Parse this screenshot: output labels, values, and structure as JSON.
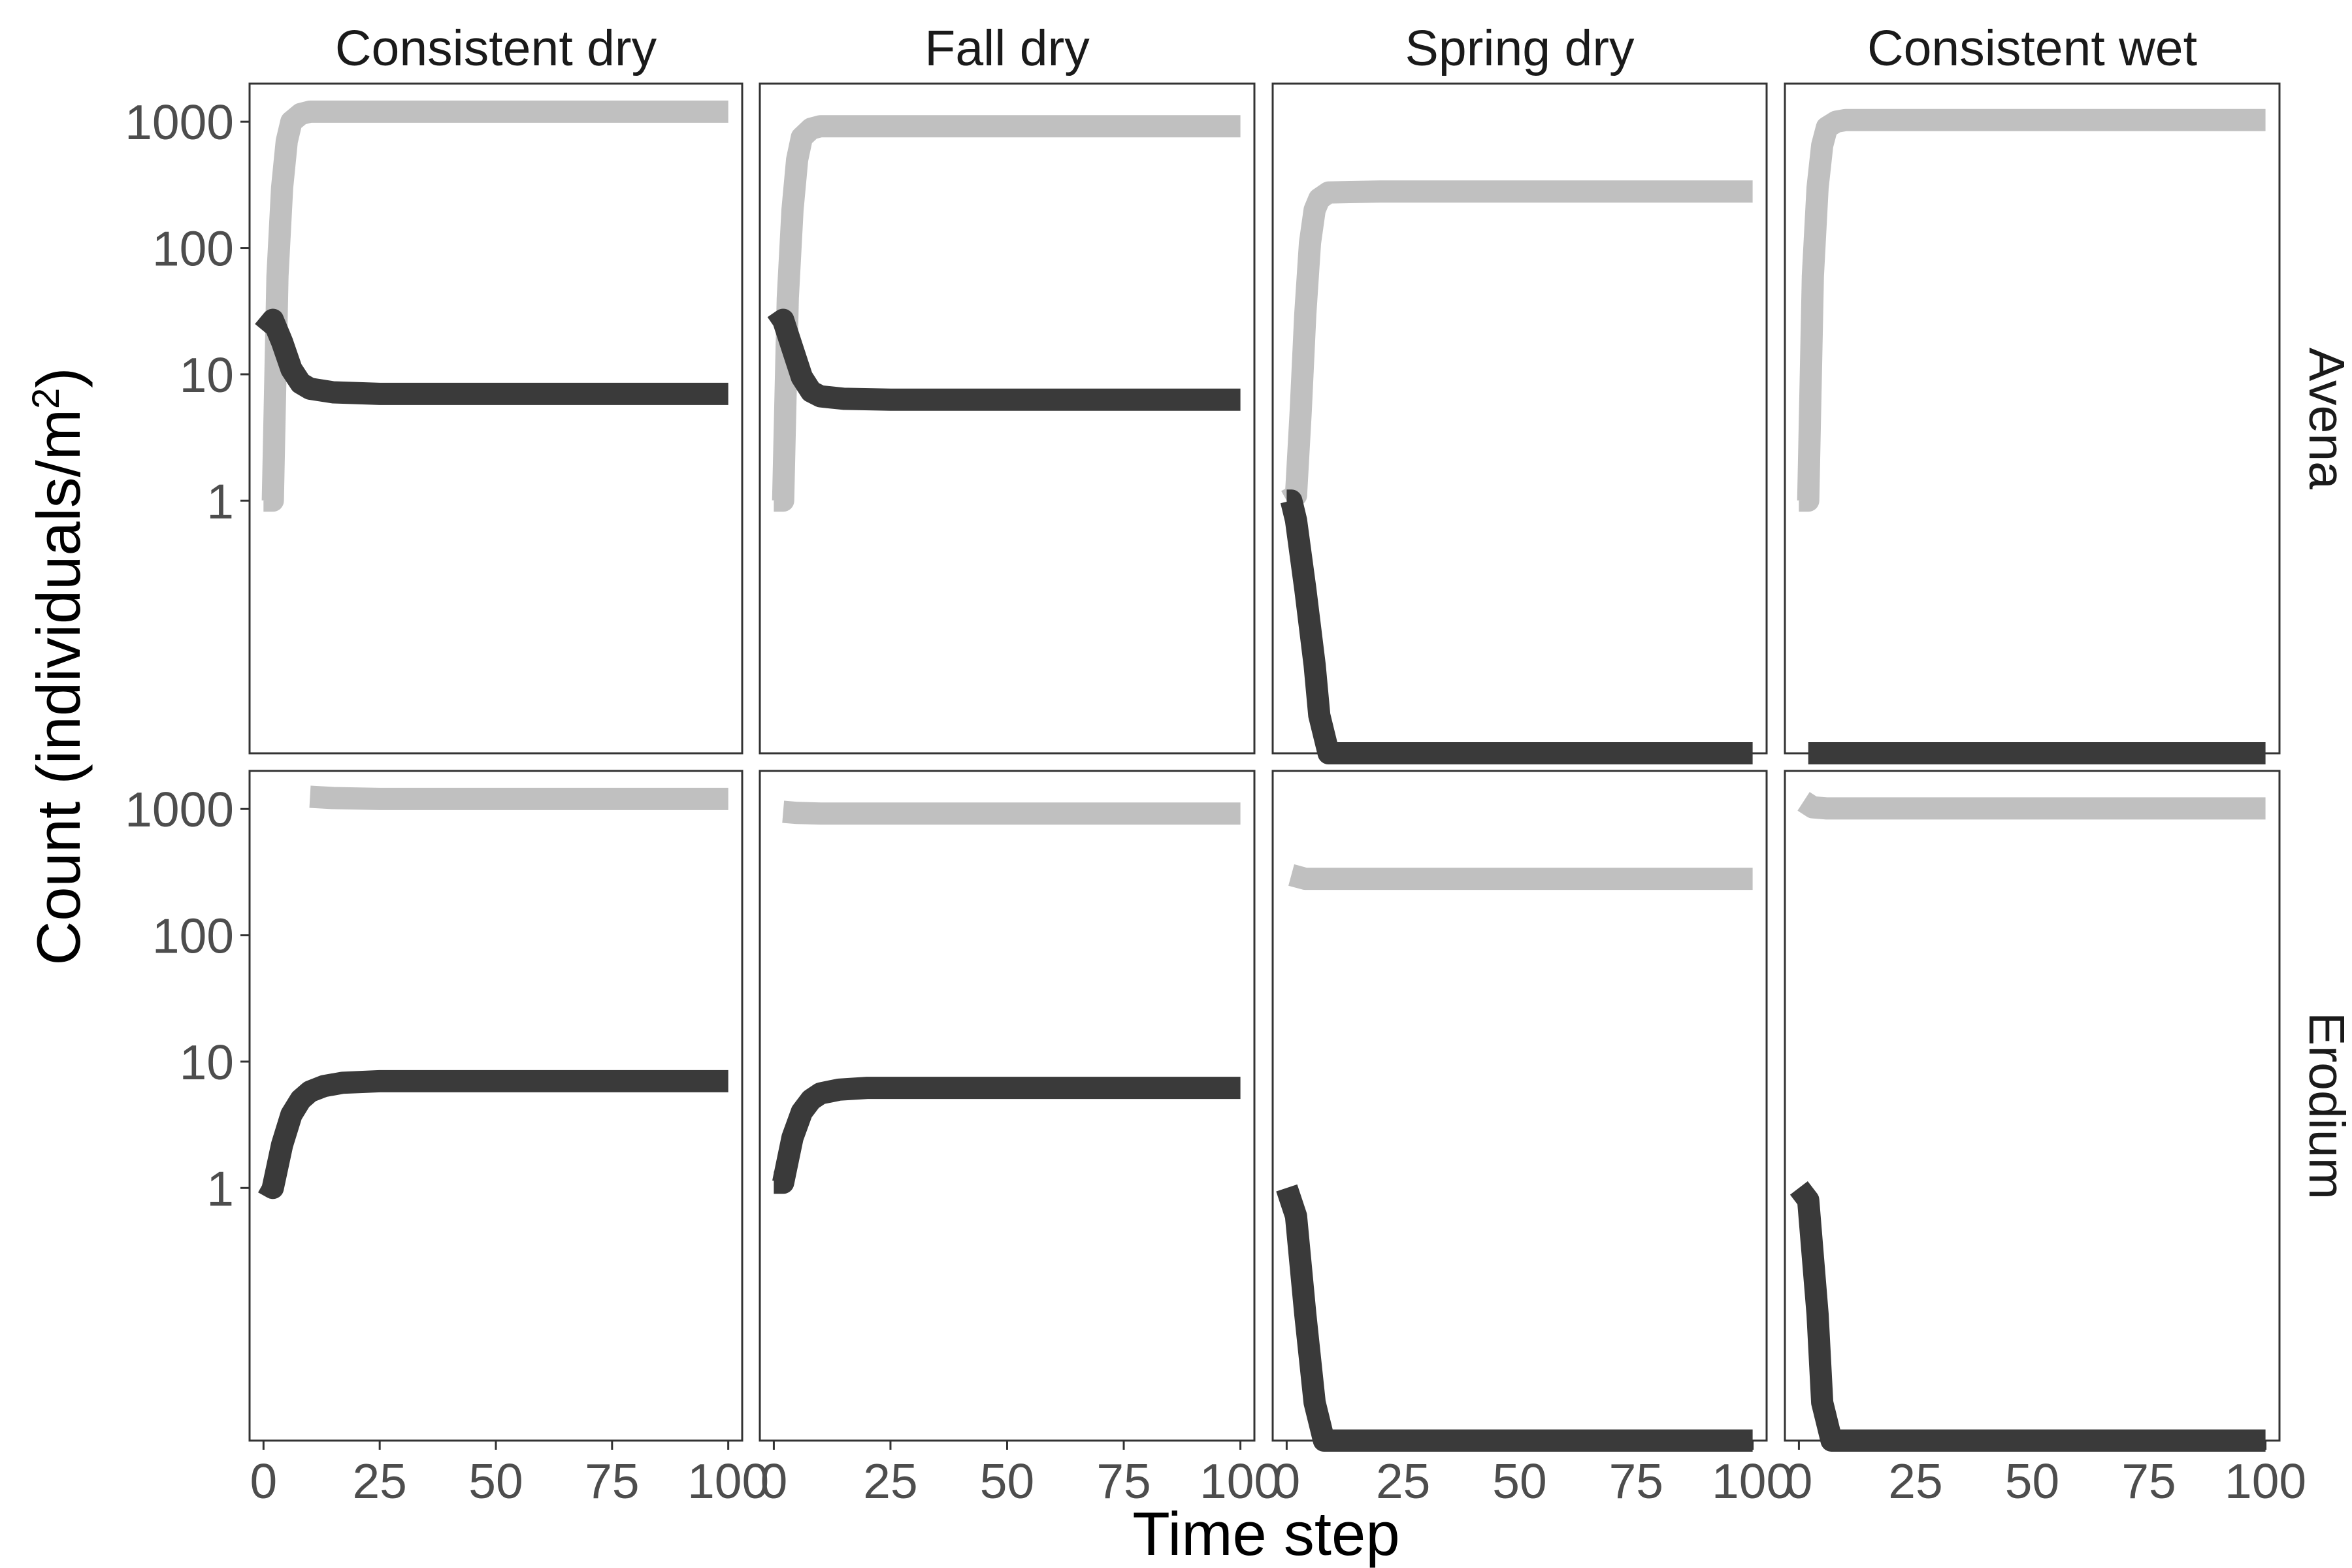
{
  "chart_data": {
    "type": "line",
    "xlabel": "Time step",
    "ylabel_prefix": "Count (individuals/m",
    "ylabel_sup": "2",
    "ylabel_suffix": ")",
    "y_scale": "log10",
    "ylim": [
      0.01,
      2000
    ],
    "xlim": [
      -3,
      103
    ],
    "x_ticks": [
      0,
      25,
      50,
      75,
      100
    ],
    "x_tick_labels": [
      "0",
      "25",
      "50",
      "75",
      "100"
    ],
    "y_ticks": [
      1,
      10,
      100,
      1000
    ],
    "y_tick_labels": [
      "1",
      "10",
      "100",
      "1000"
    ],
    "columns": [
      "Consistent dry",
      "Fall dry",
      "Spring dry",
      "Consistent wet"
    ],
    "rows": [
      "Avena",
      "Erodium"
    ],
    "colors": {
      "light": "#c0c0c0",
      "dark": "#3a3a3a"
    },
    "panels": [
      {
        "row": "Avena",
        "column": "Consistent dry",
        "series": [
          {
            "color": "light",
            "points": [
              [
                0,
                1
              ],
              [
                2,
                1
              ],
              [
                3,
                60
              ],
              [
                4,
                300
              ],
              [
                5,
                700
              ],
              [
                6,
                1000
              ],
              [
                8,
                1150
              ],
              [
                10,
                1200
              ],
              [
                20,
                1200
              ],
              [
                100,
                1200
              ]
            ]
          },
          {
            "color": "dark",
            "points": [
              [
                0,
                22
              ],
              [
                2,
                27
              ],
              [
                4,
                18
              ],
              [
                6,
                11
              ],
              [
                8,
                8.5
              ],
              [
                10,
                7.7
              ],
              [
                15,
                7.2
              ],
              [
                25,
                7
              ],
              [
                100,
                7
              ]
            ]
          }
        ]
      },
      {
        "row": "Avena",
        "column": "Fall dry",
        "series": [
          {
            "color": "light",
            "points": [
              [
                0,
                1
              ],
              [
                2,
                1
              ],
              [
                3,
                40
              ],
              [
                4,
                200
              ],
              [
                5,
                500
              ],
              [
                6,
                750
              ],
              [
                8,
                880
              ],
              [
                10,
                920
              ],
              [
                20,
                920
              ],
              [
                100,
                920
              ]
            ]
          },
          {
            "color": "dark",
            "points": [
              [
                0,
                24
              ],
              [
                2,
                27
              ],
              [
                4,
                16
              ],
              [
                6,
                9.5
              ],
              [
                8,
                7.3
              ],
              [
                10,
                6.7
              ],
              [
                15,
                6.4
              ],
              [
                25,
                6.3
              ],
              [
                100,
                6.3
              ]
            ]
          }
        ]
      },
      {
        "row": "Avena",
        "column": "Spring dry",
        "series": [
          {
            "color": "light",
            "points": [
              [
                0,
                1
              ],
              [
                2,
                1.1
              ],
              [
                3,
                5
              ],
              [
                4,
                30
              ],
              [
                5,
                110
              ],
              [
                6,
                200
              ],
              [
                7,
                245
              ],
              [
                9,
                275
              ],
              [
                20,
                280
              ],
              [
                100,
                280
              ]
            ]
          },
          {
            "color": "dark",
            "points": [
              [
                0,
                1
              ],
              [
                1,
                1
              ],
              [
                2,
                0.7
              ],
              [
                4,
                0.2
              ],
              [
                6,
                0.05
              ],
              [
                7,
                0.02
              ],
              [
                9,
                0.01
              ],
              [
                100,
                0.01
              ]
            ]
          }
        ]
      },
      {
        "row": "Avena",
        "column": "Consistent wet",
        "series": [
          {
            "color": "light",
            "points": [
              [
                0,
                1
              ],
              [
                2,
                1
              ],
              [
                3,
                60
              ],
              [
                4,
                300
              ],
              [
                5,
                650
              ],
              [
                6,
                900
              ],
              [
                8,
                1000
              ],
              [
                10,
                1030
              ],
              [
                20,
                1030
              ],
              [
                100,
                1030
              ]
            ]
          },
          {
            "color": "dark",
            "points": [
              [
                2,
                0.01
              ],
              [
                100,
                0.01
              ]
            ]
          }
        ]
      },
      {
        "row": "Erodium",
        "column": "Consistent dry",
        "series": [
          {
            "color": "light",
            "points": [
              [
                10,
                1250
              ],
              [
                15,
                1220
              ],
              [
                25,
                1200
              ],
              [
                100,
                1200
              ]
            ]
          },
          {
            "color": "dark",
            "points": [
              [
                0,
                1.1
              ],
              [
                2,
                1
              ],
              [
                4,
                2.2
              ],
              [
                6,
                3.8
              ],
              [
                8,
                5
              ],
              [
                10,
                5.8
              ],
              [
                13,
                6.4
              ],
              [
                17,
                6.8
              ],
              [
                25,
                7
              ],
              [
                100,
                7
              ]
            ]
          }
        ]
      },
      {
        "row": "Erodium",
        "column": "Fall dry",
        "series": [
          {
            "color": "light",
            "points": [
              [
                2,
                950
              ],
              [
                5,
                930
              ],
              [
                10,
                920
              ],
              [
                100,
                920
              ]
            ]
          },
          {
            "color": "dark",
            "points": [
              [
                0,
                1.1
              ],
              [
                2,
                1.1
              ],
              [
                4,
                2.5
              ],
              [
                6,
                4
              ],
              [
                8,
                5
              ],
              [
                10,
                5.6
              ],
              [
                14,
                6
              ],
              [
                20,
                6.2
              ],
              [
                100,
                6.2
              ]
            ]
          }
        ]
      },
      {
        "row": "Erodium",
        "column": "Spring dry",
        "series": [
          {
            "color": "light",
            "points": [
              [
                1,
                300
              ],
              [
                4,
                280
              ],
              [
                100,
                280
              ]
            ]
          },
          {
            "color": "dark",
            "points": [
              [
                0,
                1
              ],
              [
                2,
                0.6
              ],
              [
                4,
                0.1
              ],
              [
                6,
                0.02
              ],
              [
                8,
                0.01
              ],
              [
                100,
                0.01
              ]
            ]
          }
        ]
      },
      {
        "row": "Erodium",
        "column": "Consistent wet",
        "series": [
          {
            "color": "light",
            "points": [
              [
                1,
                1150
              ],
              [
                3,
                1030
              ],
              [
                6,
                1010
              ],
              [
                100,
                1010
              ]
            ]
          },
          {
            "color": "dark",
            "points": [
              [
                0,
                1
              ],
              [
                2,
                0.8
              ],
              [
                4,
                0.1
              ],
              [
                5,
                0.02
              ],
              [
                7,
                0.01
              ],
              [
                100,
                0.01
              ]
            ]
          }
        ]
      }
    ]
  }
}
